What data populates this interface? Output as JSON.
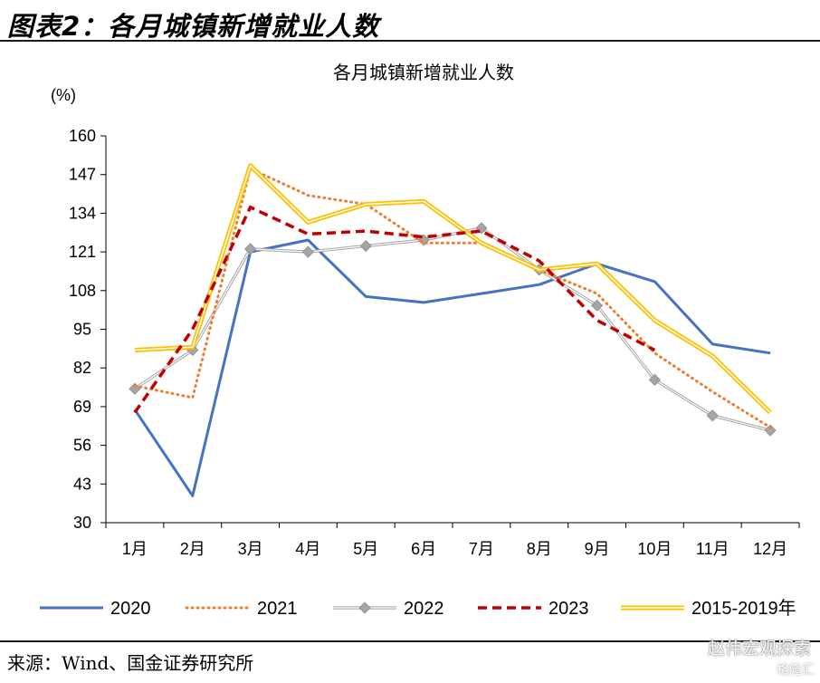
{
  "header": {
    "figure_title": "图表2：各月城镇新增就业人数",
    "source": "来源：Wind、国金证券研究所",
    "watermark": "赵伟宏观探索",
    "watermark_sub": "格隆汇"
  },
  "chart_data": {
    "type": "line",
    "title": "各月城镇新增就业人数",
    "ylabel": "(%)",
    "xlabel": "",
    "categories": [
      "1月",
      "2月",
      "3月",
      "4月",
      "5月",
      "6月",
      "7月",
      "8月",
      "9月",
      "10月",
      "11月",
      "12月"
    ],
    "ylim": [
      30,
      160
    ],
    "yticks": [
      30,
      43,
      56,
      69,
      82,
      95,
      108,
      121,
      134,
      147,
      160
    ],
    "grid": false,
    "legend_position": "bottom",
    "series": [
      {
        "name": "2020",
        "style": "solid",
        "color": "#4472C4",
        "values": [
          68,
          39,
          121,
          125,
          106,
          104,
          107,
          110,
          117,
          111,
          90,
          87
        ]
      },
      {
        "name": "2021",
        "style": "dotted",
        "color": "#ED7D31",
        "values": [
          76,
          72,
          149,
          140,
          137,
          124,
          124,
          115,
          107,
          87,
          74,
          62
        ]
      },
      {
        "name": "2022",
        "style": "solid-diamond",
        "color": "#A5A5A5",
        "values": [
          75,
          88,
          122,
          121,
          123,
          125,
          129,
          115,
          103,
          78,
          66,
          61
        ]
      },
      {
        "name": "2023",
        "style": "dashed",
        "color": "#C00000",
        "values": [
          67,
          95,
          136,
          127,
          128,
          126,
          128,
          118,
          98,
          88,
          null,
          null
        ]
      },
      {
        "name": "2015-2019年",
        "style": "double",
        "color": "#FFC000",
        "values": [
          88,
          89,
          150,
          131,
          137,
          138,
          124,
          115,
          117,
          98,
          86,
          67
        ]
      }
    ]
  }
}
